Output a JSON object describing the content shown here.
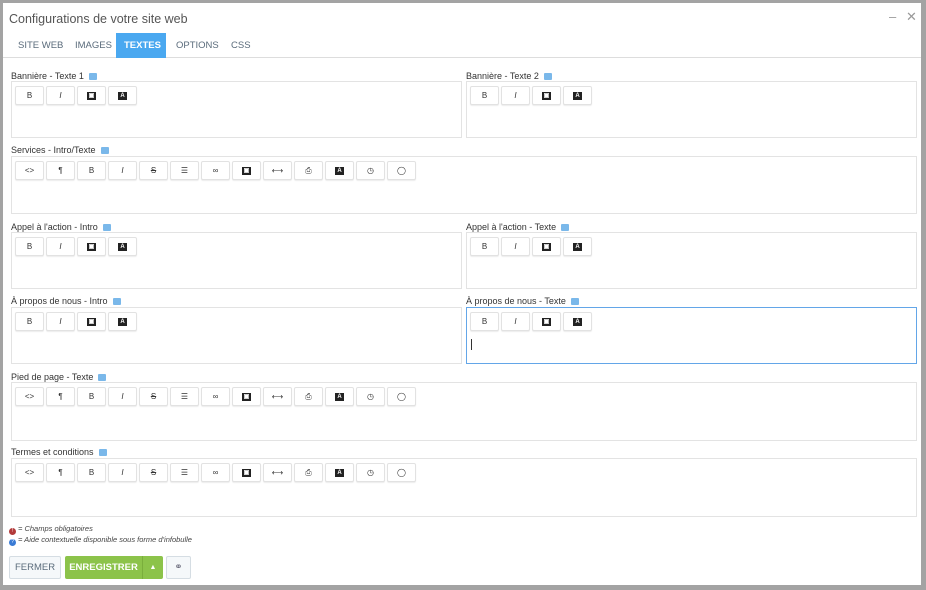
{
  "window": {
    "title": "Configurations de votre site web",
    "minimize": "–",
    "close": "✕"
  },
  "tabs": [
    {
      "label": "SITE WEB"
    },
    {
      "label": "IMAGES"
    },
    {
      "label": "TEXTES",
      "active": true
    },
    {
      "label": "OPTIONS"
    },
    {
      "label": "CSS"
    }
  ],
  "fields": {
    "banner1": "Bannière - Texte 1",
    "banner2": "Bannière - Texte 2",
    "services": "Services - Intro/Texte",
    "cta_intro": "Appel à l'action - Intro",
    "cta_text": "Appel à l'action - Texte",
    "about_intro": "À propos de nous - Intro",
    "about_text": "À propos de nous - Texte",
    "footer": "Pied de page - Texte",
    "terms": "Termes et conditions"
  },
  "toolbar_short": [
    "bold",
    "italic",
    "image",
    "font-color"
  ],
  "toolbar_full": [
    "code-view",
    "paragraph",
    "bold",
    "italic",
    "strikethrough",
    "list",
    "link",
    "image",
    "horizontal-rule",
    "print",
    "font-color",
    "clock",
    "comment"
  ],
  "toolbar_glyphs": {
    "code-view": "<>",
    "paragraph": "¶",
    "bold": "B",
    "italic": "I",
    "strikethrough": "S",
    "list": "☰",
    "link": "∞",
    "horizontal-rule": "⟷",
    "print": "⎙",
    "clock": "◷",
    "comment": "◯",
    "image": "▣",
    "font-color": "A"
  },
  "legend": {
    "required": "= Champs obligatoires",
    "help": "= Aide contextuelle disponible sous forme d'infobulle"
  },
  "footer_buttons": {
    "close": "FERMER",
    "save": "ENREGISTRER",
    "dropdown": "▲",
    "link": "⚭"
  },
  "colors": {
    "accent": "#4aa8f0",
    "save": "#8cc34a",
    "required": "#b23a3a",
    "help": "#3a7bd5"
  }
}
